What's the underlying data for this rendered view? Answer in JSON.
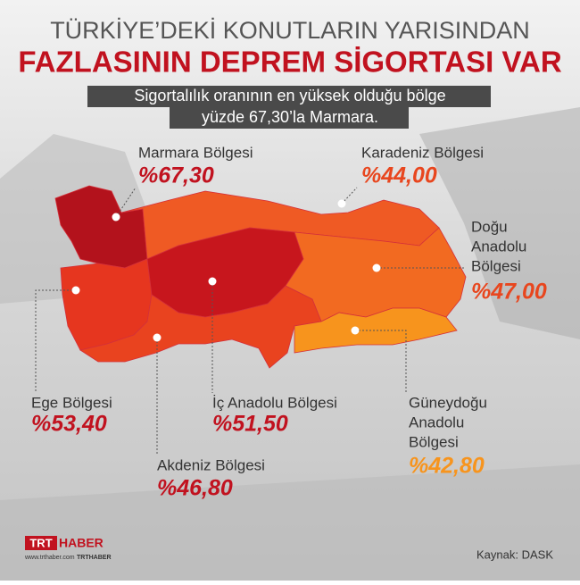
{
  "header": {
    "title_line1": "TÜRKİYE’DEKİ KONUTLARIN YARISINDAN",
    "title_line2": "FAZLASININ DEPREM SİGORTASI VAR",
    "subtitle_lines": [
      "Sigortalılık oranının en yüksek olduğu bölge",
      "yüzde 67,30’la Marmara."
    ]
  },
  "regions": [
    {
      "name_lines": [
        "Marmara Bölgesi"
      ],
      "value": 67.3,
      "label": "%67,30",
      "color": "#b3121c",
      "label_color": "#c1121f"
    },
    {
      "name_lines": [
        "Karadeniz Bölgesi"
      ],
      "value": 44.0,
      "label": "%44,00",
      "color": "#ef5a24",
      "label_color": "#e8461e"
    },
    {
      "name_lines": [
        "Doğu",
        "Anadolu",
        "Bölgesi"
      ],
      "value": 47.0,
      "label": "%47,00",
      "color": "#f26a21",
      "label_color": "#e8461e"
    },
    {
      "name_lines": [
        "Ege Bölgesi"
      ],
      "value": 53.4,
      "label": "%53,40",
      "color": "#e6361f",
      "label_color": "#c1121f"
    },
    {
      "name_lines": [
        "İç Anadolu Bölgesi"
      ],
      "value": 51.5,
      "label": "%51,50",
      "color": "#c7161d",
      "label_color": "#c1121f"
    },
    {
      "name_lines": [
        "Akdeniz Bölgesi"
      ],
      "value": 46.8,
      "label": "%46,80",
      "color": "#e9431f",
      "label_color": "#c1121f"
    },
    {
      "name_lines": [
        "Güneydoğu",
        "Anadolu",
        "Bölgesi"
      ],
      "value": 42.8,
      "label": "%42,80",
      "color": "#f7941d",
      "label_color": "#f7941d"
    }
  ],
  "footer": {
    "logo_trt": "TRT",
    "logo_haber": "HABER",
    "website": "www.trthaber.com",
    "social": "TRTHABER",
    "source": "Kaynak: DASK"
  }
}
